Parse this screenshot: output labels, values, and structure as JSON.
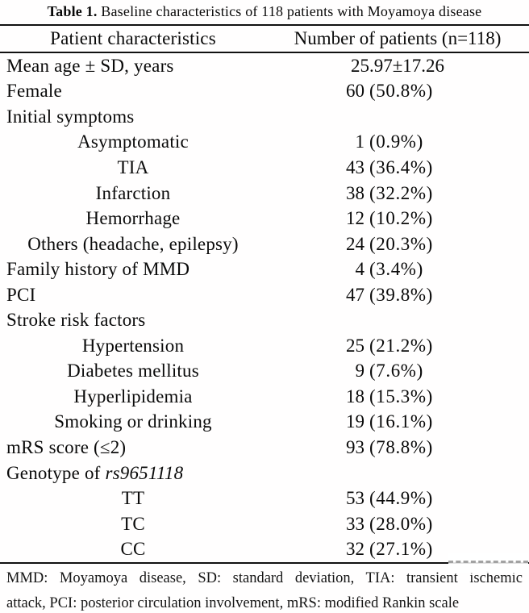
{
  "title": {
    "bold": "Table 1.",
    "rest": " Baseline characteristics of 118 patients with Moyamoya disease"
  },
  "header": {
    "col1": "Patient characteristics",
    "col2": "Number of patients (n=118)"
  },
  "rows": [
    {
      "label": "Mean age ± SD, years",
      "indent": false,
      "value": "25.97±17.26"
    },
    {
      "label": "Female",
      "indent": false,
      "n": "60",
      "pct": "(50.8%)"
    },
    {
      "label": "Initial symptoms",
      "indent": false
    },
    {
      "label": "Asymptomatic",
      "indent": true,
      "n": "1",
      "pct": "(0.9%)"
    },
    {
      "label": "TIA",
      "indent": true,
      "n": "43",
      "pct": "(36.4%)"
    },
    {
      "label": "Infarction",
      "indent": true,
      "n": "38",
      "pct": "(32.2%)"
    },
    {
      "label": "Hemorrhage",
      "indent": true,
      "n": "12",
      "pct": "(10.2%)"
    },
    {
      "label": "Others (headache, epilepsy)",
      "indent": true,
      "n": "24",
      "pct": "(20.3%)"
    },
    {
      "label": "Family history of MMD",
      "indent": false,
      "n": "4",
      "pct": "(3.4%)"
    },
    {
      "label": "PCI",
      "indent": false,
      "n": "47",
      "pct": "(39.8%)"
    },
    {
      "label": "Stroke risk factors",
      "indent": false
    },
    {
      "label": "Hypertension",
      "indent": true,
      "n": "25",
      "pct": "(21.2%)"
    },
    {
      "label": "Diabetes mellitus",
      "indent": true,
      "n": "9",
      "pct": "(7.6%)"
    },
    {
      "label": "Hyperlipidemia",
      "indent": true,
      "n": "18",
      "pct": "(15.3%)"
    },
    {
      "label": "Smoking or drinking",
      "indent": true,
      "n": "19",
      "pct": "(16.1%)"
    },
    {
      "label": "mRS score (≤2)",
      "indent": false,
      "n": "93",
      "pct": "(78.8%)"
    },
    {
      "label": "Genotype of ",
      "label_italic": "rs9651118",
      "indent": false
    },
    {
      "label": "TT",
      "indent": true,
      "n": "53",
      "pct": "(44.9%)"
    },
    {
      "label": "TC",
      "indent": true,
      "n": "33",
      "pct": "(28.0%)"
    },
    {
      "label": "CC",
      "indent": true,
      "n": "32",
      "pct": "(27.1%)"
    }
  ],
  "footnote": {
    "line1": "MMD: Moyamoya disease, SD: standard deviation, TIA: transient ischemic",
    "line2": "attack, PCI: posterior circulation involvement, mRS: modified Rankin scale"
  },
  "colors": {
    "text": "#0a0a0a",
    "rule": "#111111",
    "background": "#ffffff",
    "watermark_gray": "#a2a2a2"
  }
}
